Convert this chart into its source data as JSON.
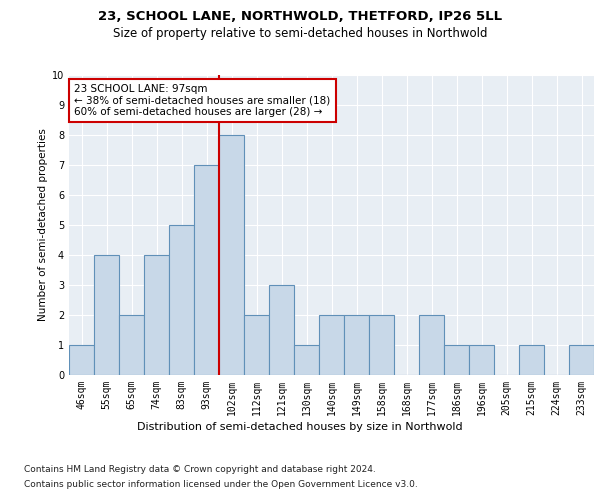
{
  "title_line1": "23, SCHOOL LANE, NORTHWOLD, THETFORD, IP26 5LL",
  "title_line2": "Size of property relative to semi-detached houses in Northwold",
  "xlabel": "Distribution of semi-detached houses by size in Northwold",
  "ylabel": "Number of semi-detached properties",
  "categories": [
    "46sqm",
    "55sqm",
    "65sqm",
    "74sqm",
    "83sqm",
    "93sqm",
    "102sqm",
    "112sqm",
    "121sqm",
    "130sqm",
    "140sqm",
    "149sqm",
    "158sqm",
    "168sqm",
    "177sqm",
    "186sqm",
    "196sqm",
    "205sqm",
    "215sqm",
    "224sqm",
    "233sqm"
  ],
  "values": [
    1,
    4,
    2,
    4,
    5,
    7,
    8,
    2,
    3,
    1,
    2,
    2,
    2,
    0,
    2,
    1,
    1,
    0,
    1,
    0,
    1
  ],
  "bar_color": "#c8d8e8",
  "bar_edge_color": "#6090b8",
  "bar_linewidth": 0.8,
  "subject_line_index": 6,
  "subject_line_color": "#cc0000",
  "annotation_text": "23 SCHOOL LANE: 97sqm\n← 38% of semi-detached houses are smaller (18)\n60% of semi-detached houses are larger (28) →",
  "annotation_box_color": "white",
  "annotation_box_edge_color": "#cc0000",
  "ylim": [
    0,
    10
  ],
  "yticks": [
    0,
    1,
    2,
    3,
    4,
    5,
    6,
    7,
    8,
    9,
    10
  ],
  "plot_bg_color": "#e8eef4",
  "grid_color": "white",
  "footnote_line1": "Contains HM Land Registry data © Crown copyright and database right 2024.",
  "footnote_line2": "Contains public sector information licensed under the Open Government Licence v3.0.",
  "title_fontsize": 9.5,
  "subtitle_fontsize": 8.5,
  "xlabel_fontsize": 8,
  "ylabel_fontsize": 7.5,
  "tick_fontsize": 7,
  "annotation_fontsize": 7.5,
  "footnote_fontsize": 6.5
}
